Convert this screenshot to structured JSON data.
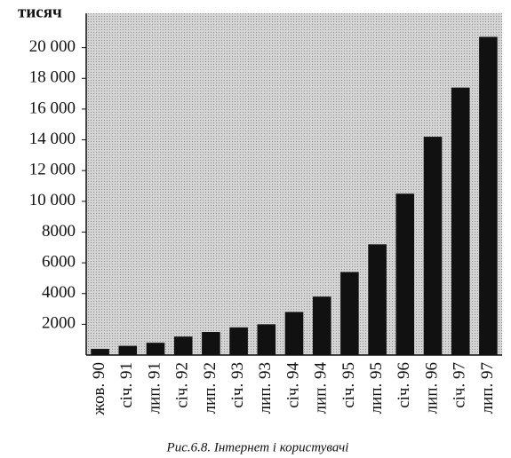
{
  "chart_data": {
    "type": "bar",
    "y_axis_label": "тисяч",
    "caption": "Рис.6.8. Інтернет і користувачі",
    "categories": [
      "жов. 90",
      "січ. 91",
      "лип. 91",
      "січ. 92",
      "лип. 92",
      "січ. 93",
      "лип. 93",
      "січ. 94",
      "лип. 94",
      "січ. 95",
      "лип. 95",
      "січ. 96",
      "лип. 96",
      "січ. 97",
      "лип. 97"
    ],
    "values": [
      400,
      600,
      800,
      1200,
      1500,
      1800,
      2000,
      2800,
      3800,
      5400,
      7200,
      10500,
      14200,
      17400,
      20700
    ],
    "color": "#111111",
    "ylim": [
      0,
      22000
    ],
    "yticks": [
      2000,
      4000,
      6000,
      8000,
      {
        "value": 10000,
        "label": "10 000"
      },
      {
        "value": 12000,
        "label": "12 000"
      },
      {
        "value": 14000,
        "label": "14 000"
      },
      {
        "value": 16000,
        "label": "16 000"
      },
      {
        "value": 18000,
        "label": "18 000"
      },
      {
        "value": 20000,
        "label": "20 000"
      }
    ]
  }
}
